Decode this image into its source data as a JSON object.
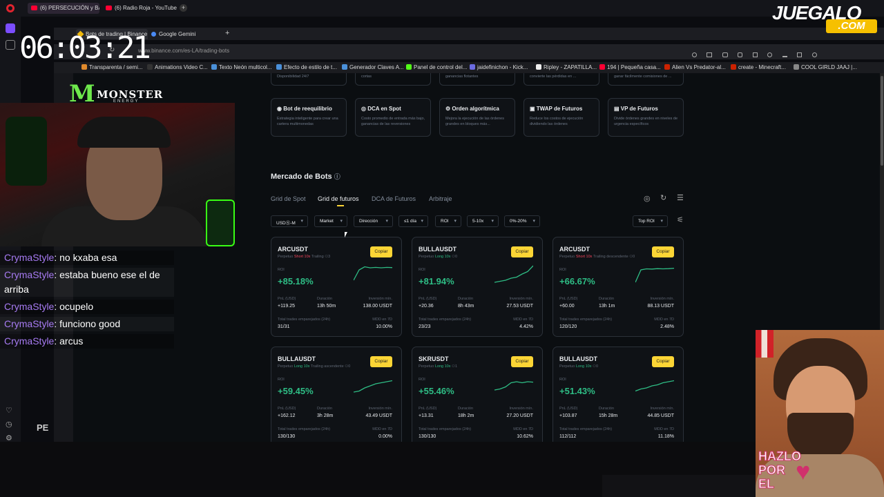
{
  "outer_browser": {
    "tabs": [
      "(6) PERSECUCIÓN y BALA",
      "(6) Radio Roja - YouTube"
    ]
  },
  "inner_browser": {
    "tabs": [
      "Bots de trading | Binance",
      "Google Gemini"
    ],
    "url": "www.binance.com/es-LA/trading-bots",
    "bookmarks": [
      "Transparenta / semi...",
      "Animations Video C...",
      "Texto Neón multicol...",
      "Efecto de estilo de t...",
      "Generador Claves A...",
      "Panel de control del...",
      "jaidefinichon - Kick...",
      "Ripley - ZAPATILLA...",
      "194 | Pequeña casa...",
      "Alien Vs Predator-al...",
      "create - Minecraft...",
      "COOL GIRLD JAAJ |..."
    ],
    "bookmark_colors": [
      "#e08a2c",
      "#333",
      "#4a90d9",
      "#4a90d9",
      "#4a90d9",
      "#53fc18",
      "#6b6be0",
      "#eee",
      "#ff0033",
      "#cc2200",
      "#cc2200",
      "#888"
    ]
  },
  "strategy_row_top": [
    "Disponibilidad 24/7",
    "cortas",
    "ganancias flotantes",
    "convierte las pérdidas en ...",
    "ganar fácilmente comisiones de ..."
  ],
  "strategies": [
    {
      "title": "Bot de reequilibrio",
      "desc": "Estrategia inteligente para crear una cartera multimonedas",
      "icon": "rebalance-icon"
    },
    {
      "title": "DCA en Spot",
      "desc": "Costo promedio de entrada más bajo, ganancias de las reversiones",
      "icon": "dca-icon"
    },
    {
      "title": "Orden algorítmica",
      "desc": "Mejora la ejecución de las órdenes grandes en bloques más...",
      "icon": "algo-icon"
    },
    {
      "title": "TWAP de Futuros",
      "desc": "Reduce los costos de ejecución dividiendo las órdenes",
      "icon": "twap-icon"
    },
    {
      "title": "VP de Futuros",
      "desc": "Divide órdenes grandes en niveles de urgencia específicos",
      "icon": "vp-icon"
    }
  ],
  "market": {
    "title": "Mercado de Bots",
    "tabs": [
      "Grid de Spot",
      "Grid de futuros",
      "DCA de Futuros",
      "Arbitraje"
    ],
    "active_tab": 1,
    "filters": [
      "USDⓈ-M",
      "Market",
      "Dirección",
      "≤1 día",
      "ROI",
      "5-10x",
      "0%-20%"
    ],
    "sort": "Top ROI"
  },
  "labels": {
    "roi": "ROI",
    "pnl": "PnL (USD)",
    "duration": "Duración",
    "min_investment": "Inversión mín.",
    "total_trades": "Total trades emparejados (24h)",
    "mdd": "MDD en 7D",
    "copy": "Copiar"
  },
  "bots": [
    {
      "symbol": "ARCUSDT",
      "market": "Perpetuo",
      "side": "Short 10x",
      "side_color": "red",
      "extra": "Trailing",
      "count": "3",
      "roi": "+85.18%",
      "pnl": "+119.25",
      "duration": "13h 50m",
      "min_inv": "138.00 USDT",
      "trades": "31/31",
      "mdd": "10.00%",
      "spark": [
        0.2,
        0.7,
        0.85,
        0.8,
        0.82,
        0.8,
        0.82,
        0.81
      ]
    },
    {
      "symbol": "BULLAUSDT",
      "market": "Perpetuo",
      "side": "Long 10x",
      "side_color": "green",
      "extra": "",
      "count": "0",
      "roi": "+81.94%",
      "pnl": "+20.36",
      "duration": "8h 43m",
      "min_inv": "27.53 USDT",
      "trades": "23/23",
      "mdd": "4.42%",
      "spark": [
        0.1,
        0.15,
        0.2,
        0.3,
        0.35,
        0.5,
        0.62,
        0.9
      ]
    },
    {
      "symbol": "ARCUSDT",
      "market": "Perpetuo",
      "side": "Short 10x",
      "side_color": "red",
      "extra": "Trailing descendente",
      "count": "0",
      "roi": "+66.67%",
      "pnl": "+60.00",
      "duration": "13h 1m",
      "min_inv": "88.13 USDT",
      "trades": "120/120",
      "mdd": "2.48%",
      "spark": [
        0.1,
        0.7,
        0.75,
        0.74,
        0.76,
        0.75,
        0.76,
        0.78
      ]
    },
    {
      "symbol": "BULLAUSDT",
      "market": "Perpetuo",
      "side": "Long 10x",
      "side_color": "green",
      "extra": "Trailing ascendente",
      "count": "0",
      "roi": "+59.45%",
      "pnl": "+162.12",
      "duration": "3h 28m",
      "min_inv": "43.49 USDT",
      "trades": "130/130",
      "mdd": "0.00%",
      "spark": [
        0.1,
        0.15,
        0.3,
        0.4,
        0.5,
        0.55,
        0.6,
        0.65
      ]
    },
    {
      "symbol": "SKRUSDT",
      "market": "Perpetuo",
      "side": "Long 10x",
      "side_color": "green",
      "extra": "",
      "count": "1",
      "roi": "+55.46%",
      "pnl": "+13.31",
      "duration": "18h 2m",
      "min_inv": "27.20 USDT",
      "trades": "130/130",
      "mdd": "10.62%",
      "spark": [
        0.2,
        0.25,
        0.35,
        0.55,
        0.6,
        0.55,
        0.6,
        0.58
      ]
    },
    {
      "symbol": "BULLAUSDT",
      "market": "Perpetuo",
      "side": "Long 10x",
      "side_color": "green",
      "extra": "",
      "count": "0",
      "roi": "+51.43%",
      "pnl": "+103.87",
      "duration": "15h 28m",
      "min_inv": "44.85 USDT",
      "trades": "112/112",
      "mdd": "11.18%",
      "spark": [
        0.15,
        0.25,
        0.3,
        0.4,
        0.45,
        0.55,
        0.6,
        0.65
      ]
    }
  ],
  "overlay": {
    "clock": "06:03:21",
    "logo_word": "MONSTER",
    "logo_sub": "ENERGY",
    "pe_text": "PE",
    "jg_top": "JUEGALO",
    "jg_bottom": ".COM",
    "hazlo_lines": [
      "HAZLO",
      "POR",
      "EL"
    ]
  },
  "chat": [
    {
      "user": "CrymaStyle",
      "msg": ": no kxaba esa"
    },
    {
      "user": "CrymaStyle",
      "msg": ": estaba bueno ese el de arriba"
    },
    {
      "user": "CrymaStyle",
      "msg": ": ocupelo"
    },
    {
      "user": "CrymaStyle",
      "msg": ": funciono good"
    },
    {
      "user": "CrymaStyle",
      "msg": ": arcus"
    }
  ]
}
